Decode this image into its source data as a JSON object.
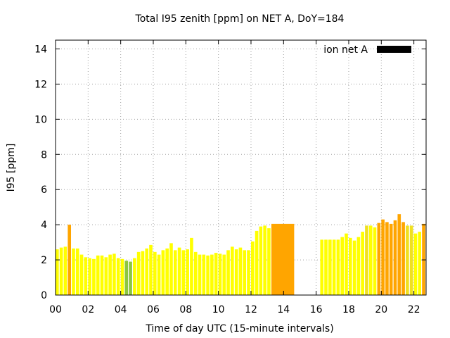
{
  "chart_data": {
    "type": "bar",
    "title": "Total I95 zenith [ppm] on NET A, DoY=184",
    "xlabel": "Time of day UTC (15-minute intervals)",
    "ylabel": "I95 [ppm]",
    "xlim": [
      0,
      22.75
    ],
    "ylim": [
      0,
      14.5
    ],
    "x_ticks": [
      "00",
      "02",
      "04",
      "06",
      "08",
      "10",
      "12",
      "14",
      "16",
      "18",
      "20",
      "22"
    ],
    "y_ticks": [
      "0",
      "2",
      "4",
      "6",
      "8",
      "10",
      "12",
      "14"
    ],
    "grid": true,
    "legend": {
      "label": "ion net A",
      "color": "#000000",
      "placement": "top-right"
    },
    "colors": {
      "low": "#ffff00",
      "mid": "#f0e020",
      "high": "#ffa500",
      "green": "#8cc63f"
    },
    "bar_hours": 0.2,
    "bars": [
      {
        "x": 0.0,
        "value": 2.6,
        "color": "#ffff00"
      },
      {
        "x": 0.25,
        "value": 2.7,
        "color": "#ffff00"
      },
      {
        "x": 0.5,
        "value": 2.75,
        "color": "#ffff00"
      },
      {
        "x": 0.75,
        "value": 4.0,
        "color": "#ffa500"
      },
      {
        "x": 1.0,
        "value": 2.65,
        "color": "#ffff00"
      },
      {
        "x": 1.25,
        "value": 2.65,
        "color": "#ffff00"
      },
      {
        "x": 1.5,
        "value": 2.3,
        "color": "#ffff00"
      },
      {
        "x": 1.75,
        "value": 2.15,
        "color": "#ffff00"
      },
      {
        "x": 2.0,
        "value": 2.1,
        "color": "#ffff00"
      },
      {
        "x": 2.25,
        "value": 2.05,
        "color": "#ffff00"
      },
      {
        "x": 2.5,
        "value": 2.25,
        "color": "#ffff00"
      },
      {
        "x": 2.75,
        "value": 2.25,
        "color": "#ffff00"
      },
      {
        "x": 3.0,
        "value": 2.15,
        "color": "#ffff00"
      },
      {
        "x": 3.25,
        "value": 2.3,
        "color": "#ffff00"
      },
      {
        "x": 3.5,
        "value": 2.35,
        "color": "#ffff00"
      },
      {
        "x": 3.75,
        "value": 2.1,
        "color": "#ffff00"
      },
      {
        "x": 4.0,
        "value": 2.05,
        "color": "#ffff00"
      },
      {
        "x": 4.25,
        "value": 1.95,
        "color": "#8cc63f"
      },
      {
        "x": 4.5,
        "value": 1.9,
        "color": "#8cc63f"
      },
      {
        "x": 4.75,
        "value": 2.1,
        "color": "#ffff00"
      },
      {
        "x": 5.0,
        "value": 2.45,
        "color": "#ffff00"
      },
      {
        "x": 5.25,
        "value": 2.5,
        "color": "#ffff00"
      },
      {
        "x": 5.5,
        "value": 2.65,
        "color": "#ffff00"
      },
      {
        "x": 5.75,
        "value": 2.85,
        "color": "#ffff00"
      },
      {
        "x": 6.0,
        "value": 2.45,
        "color": "#ffff00"
      },
      {
        "x": 6.25,
        "value": 2.3,
        "color": "#ffff00"
      },
      {
        "x": 6.5,
        "value": 2.55,
        "color": "#ffff00"
      },
      {
        "x": 6.75,
        "value": 2.65,
        "color": "#ffff00"
      },
      {
        "x": 7.0,
        "value": 2.95,
        "color": "#ffff00"
      },
      {
        "x": 7.25,
        "value": 2.55,
        "color": "#ffff00"
      },
      {
        "x": 7.5,
        "value": 2.7,
        "color": "#ffff00"
      },
      {
        "x": 7.75,
        "value": 2.55,
        "color": "#ffff00"
      },
      {
        "x": 8.0,
        "value": 2.6,
        "color": "#ffff00"
      },
      {
        "x": 8.25,
        "value": 3.25,
        "color": "#ffff00"
      },
      {
        "x": 8.5,
        "value": 2.45,
        "color": "#ffff00"
      },
      {
        "x": 8.75,
        "value": 2.3,
        "color": "#ffff00"
      },
      {
        "x": 9.0,
        "value": 2.3,
        "color": "#ffff00"
      },
      {
        "x": 9.25,
        "value": 2.25,
        "color": "#ffff00"
      },
      {
        "x": 9.5,
        "value": 2.3,
        "color": "#ffff00"
      },
      {
        "x": 9.75,
        "value": 2.4,
        "color": "#ffff00"
      },
      {
        "x": 10.0,
        "value": 2.35,
        "color": "#ffff00"
      },
      {
        "x": 10.25,
        "value": 2.3,
        "color": "#ffff00"
      },
      {
        "x": 10.5,
        "value": 2.55,
        "color": "#ffff00"
      },
      {
        "x": 10.75,
        "value": 2.75,
        "color": "#ffff00"
      },
      {
        "x": 11.0,
        "value": 2.6,
        "color": "#ffff00"
      },
      {
        "x": 11.25,
        "value": 2.7,
        "color": "#ffff00"
      },
      {
        "x": 11.5,
        "value": 2.55,
        "color": "#ffff00"
      },
      {
        "x": 11.75,
        "value": 2.55,
        "color": "#ffff00"
      },
      {
        "x": 12.0,
        "value": 3.05,
        "color": "#ffff00"
      },
      {
        "x": 12.25,
        "value": 3.65,
        "color": "#ffff00"
      },
      {
        "x": 12.5,
        "value": 3.9,
        "color": "#ffff00"
      },
      {
        "x": 12.75,
        "value": 3.95,
        "color": "#ffff00"
      },
      {
        "x": 13.0,
        "value": 3.8,
        "color": "#ffff00"
      },
      {
        "x": 16.25,
        "value": 3.15,
        "color": "#ffff00"
      },
      {
        "x": 16.5,
        "value": 3.15,
        "color": "#ffff00"
      },
      {
        "x": 16.75,
        "value": 3.15,
        "color": "#ffff00"
      },
      {
        "x": 17.0,
        "value": 3.15,
        "color": "#ffff00"
      },
      {
        "x": 17.25,
        "value": 3.15,
        "color": "#ffff00"
      },
      {
        "x": 17.5,
        "value": 3.3,
        "color": "#ffff00"
      },
      {
        "x": 17.75,
        "value": 3.5,
        "color": "#ffff00"
      },
      {
        "x": 18.0,
        "value": 3.25,
        "color": "#ffff00"
      },
      {
        "x": 18.25,
        "value": 3.1,
        "color": "#ffff00"
      },
      {
        "x": 18.5,
        "value": 3.3,
        "color": "#ffff00"
      },
      {
        "x": 18.75,
        "value": 3.6,
        "color": "#ffff00"
      },
      {
        "x": 19.0,
        "value": 3.95,
        "color": "#f0e020"
      },
      {
        "x": 19.25,
        "value": 3.95,
        "color": "#ffff00"
      },
      {
        "x": 19.5,
        "value": 3.85,
        "color": "#ffff00"
      },
      {
        "x": 19.75,
        "value": 4.1,
        "color": "#ffa500"
      },
      {
        "x": 20.0,
        "value": 4.3,
        "color": "#ffa500"
      },
      {
        "x": 20.25,
        "value": 4.15,
        "color": "#ffa500"
      },
      {
        "x": 20.5,
        "value": 4.05,
        "color": "#ffa500"
      },
      {
        "x": 20.75,
        "value": 4.25,
        "color": "#ffa500"
      },
      {
        "x": 21.0,
        "value": 4.6,
        "color": "#ffa500"
      },
      {
        "x": 21.25,
        "value": 4.15,
        "color": "#ffa500"
      },
      {
        "x": 21.5,
        "value": 3.95,
        "color": "#f0e020"
      },
      {
        "x": 21.75,
        "value": 3.95,
        "color": "#f0e020"
      },
      {
        "x": 22.0,
        "value": 3.5,
        "color": "#ffff00"
      },
      {
        "x": 22.25,
        "value": 3.6,
        "color": "#ffff00"
      },
      {
        "x": 22.5,
        "value": 4.05,
        "color": "#ffa500"
      },
      {
        "x": 22.75,
        "value": 4.4,
        "color": "#ffa500"
      }
    ],
    "blocks": [
      {
        "x_start": 13.25,
        "x_end": 14.65,
        "value": 4.05,
        "color": "#ffa500"
      }
    ]
  }
}
